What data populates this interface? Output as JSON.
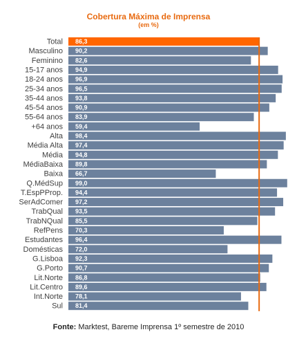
{
  "chart_data": {
    "type": "bar",
    "orientation": "horizontal",
    "title": "Cobertura Máxima de Imprensa",
    "subtitle": "(em %)",
    "categories": [
      "Total",
      "Masculino",
      "Feminino",
      "15-17 anos",
      "18-24 anos",
      "25-34 anos",
      "35-44 anos",
      "45-54 anos",
      "55-64 anos",
      "+64 anos",
      "Alta",
      "Média Alta",
      "Média",
      "MédiaBaixa",
      "Baixa",
      "Q.MédSup",
      "T.EspPProp.",
      "SerAdComer",
      "TrabQual",
      "TrabNQual",
      "RefPens",
      "Estudantes",
      "Domésticas",
      "G.Lisboa",
      "G.Porto",
      "Lit.Norte",
      "Lit.Centro",
      "Int.Norte",
      "Sul"
    ],
    "values": [
      86.3,
      90.2,
      82.6,
      94.9,
      96.9,
      96.5,
      93.8,
      90.9,
      83.9,
      59.4,
      98.4,
      97.4,
      94.8,
      89.8,
      66.7,
      99.0,
      94.4,
      97.2,
      93.5,
      85.5,
      70.3,
      96.4,
      72.0,
      92.3,
      90.7,
      86.8,
      89.6,
      78.1,
      81.4
    ],
    "value_labels": [
      "86,3",
      "90,2",
      "82,6",
      "94,9",
      "96,9",
      "96,5",
      "93,8",
      "90,9",
      "83,9",
      "59,4",
      "98,4",
      "97,4",
      "94,8",
      "89,8",
      "66,7",
      "99,0",
      "94,4",
      "97,2",
      "93,5",
      "85,5",
      "70,3",
      "96,4",
      "72,0",
      "92,3",
      "90,7",
      "86,8",
      "89,6",
      "78,1",
      "81,4"
    ],
    "reference_line": 86.3,
    "highlight_category": "Total",
    "colors": {
      "bar": "#6c819d",
      "highlight": "#ff6600",
      "reference_line": "#e86a10",
      "title": "#e86a10"
    }
  },
  "source": {
    "label": "Fonte:",
    "text": "Marktest, Bareme Imprensa 1º semestre de 2010"
  }
}
